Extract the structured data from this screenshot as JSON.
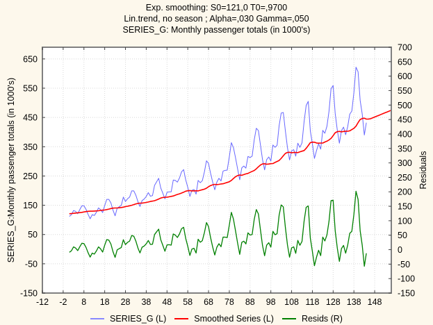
{
  "chart_data": {
    "type": "line",
    "title_lines": [
      "Exp. smoothing:  S0=121,0 T0=,9700",
      "Lin.trend, no season   ; Alpha=,030 Gamma=,050",
      "SERIES_G: Monthly passenger totals (in 1000's)"
    ],
    "ylabel_left": "SERIES_G:Monthly passenger totals (in 1000's)",
    "ylabel_right": "Residuals",
    "xlim": [
      -12,
      156
    ],
    "ylim_left": [
      -150,
      690
    ],
    "ylim_right": [
      -150,
      700
    ],
    "x_ticks": [
      "-12",
      "-2",
      "8",
      "18",
      "28",
      "38",
      "48",
      "58",
      "68",
      "78",
      "88",
      "98",
      "108",
      "118",
      "128",
      "138",
      "148"
    ],
    "y_ticks_left": [
      "650",
      "550",
      "450",
      "350",
      "250",
      "150",
      "50",
      "-50",
      "-150"
    ],
    "y_ticks_right": [
      "700",
      "650",
      "600",
      "550",
      "500",
      "450",
      "400",
      "350",
      "300",
      "250",
      "200",
      "150",
      "100",
      "50",
      "0",
      "-50",
      "-100",
      "-150"
    ],
    "grid": true,
    "legend_position": "bottom",
    "colors": {
      "series_g": "#6666ff",
      "smoothed": "#ff0000",
      "resids": "#008000"
    },
    "series": [
      {
        "name": "SERIES_G (L)",
        "axis": "left",
        "x_start": 1,
        "values": [
          112,
          118,
          132,
          129,
          121,
          135,
          148,
          148,
          136,
          119,
          104,
          118,
          115,
          126,
          141,
          135,
          125,
          149,
          170,
          170,
          158,
          133,
          114,
          140,
          145,
          150,
          178,
          163,
          172,
          178,
          199,
          199,
          184,
          162,
          146,
          166,
          171,
          180,
          193,
          181,
          183,
          218,
          230,
          242,
          209,
          191,
          172,
          194,
          196,
          196,
          236,
          235,
          229,
          243,
          264,
          272,
          237,
          211,
          180,
          201,
          204,
          188,
          235,
          227,
          234,
          264,
          302,
          293,
          259,
          229,
          203,
          229,
          242,
          233,
          267,
          269,
          270,
          315,
          364,
          347,
          312,
          274,
          237,
          278,
          284,
          277,
          317,
          313,
          318,
          374,
          413,
          405,
          355,
          306,
          271,
          306,
          315,
          301,
          356,
          348,
          355,
          422,
          465,
          467,
          404,
          347,
          305,
          336,
          340,
          318,
          362,
          348,
          363,
          435,
          491,
          505,
          404,
          359,
          310,
          337,
          360,
          342,
          406,
          396,
          420,
          472,
          548,
          559,
          463,
          407,
          362,
          405,
          417,
          391,
          419,
          461,
          472,
          535,
          622,
          606,
          508,
          461,
          390,
          432
        ]
      },
      {
        "name": "Smoothed Series (L)",
        "axis": "left",
        "x_start": 1,
        "values": [
          121,
          121.7,
          122.4,
          123.4,
          124.2,
          124.8,
          125.8,
          127.1,
          128.3,
          129.2,
          129.7,
          129.8,
          130.3,
          130.6,
          131.3,
          132.4,
          133.3,
          133.9,
          135.2,
          137.0,
          138.7,
          140.1,
          140.7,
          140.6,
          141.4,
          142.4,
          143.5,
          145.4,
          146.7,
          148.3,
          150.0,
          152.4,
          154.6,
          156.3,
          157.3,
          157.6,
          158.5,
          159.7,
          161.2,
          163.0,
          164.2,
          165.6,
          168.2,
          171.2,
          174.6,
          176.4,
          177.5,
          177.6,
          179.0,
          180.4,
          181.7,
          184.4,
          187.0,
          189.0,
          191.6,
          194.6,
          198.0,
          199.6,
          200.2,
          199.1,
          199.2,
          199.6,
          199.0,
          201.2,
          203.0,
          205.1,
          208.3,
          213.2,
          217.3,
          219.9,
          221.3,
          220.6,
          221.3,
          222.8,
          223.4,
          225.8,
          228.1,
          230.4,
          234.9,
          241.6,
          247.4,
          251.5,
          253.3,
          252.4,
          254.7,
          257.1,
          258.8,
          262.5,
          265.7,
          268.7,
          274.4,
          281.5,
          287.6,
          291.2,
          291.9,
          290.1,
          290.9,
          292.0,
          292.5,
          296.3,
          299.6,
          302.9,
          310.3,
          318.8,
          327.1,
          330.6,
          331.0,
          329.6,
          330.2,
          330.6,
          329.9,
          332.7,
          334.7,
          337.0,
          344.4,
          353.9,
          364.0,
          365.6,
          365.4,
          362.8,
          362.1,
          362.6,
          362.5,
          366.0,
          369.0,
          373.2,
          378.4,
          388.0,
          398.0,
          401.4,
          402.5,
          401.0,
          402.2,
          403.2,
          402.9,
          404.4,
          408.6,
          412.9,
          420.1,
          432.3,
          442.9,
          446.2,
          447.4,
          444.4,
          444.7,
          445.6,
          448.6,
          451.5,
          454.4,
          457.3,
          460.2,
          463.1,
          466.0,
          468.9,
          471.8,
          474.7
        ]
      }
    ],
    "resids": {
      "name": "Resids (R)",
      "axis": "right",
      "x_start": 1
    }
  }
}
